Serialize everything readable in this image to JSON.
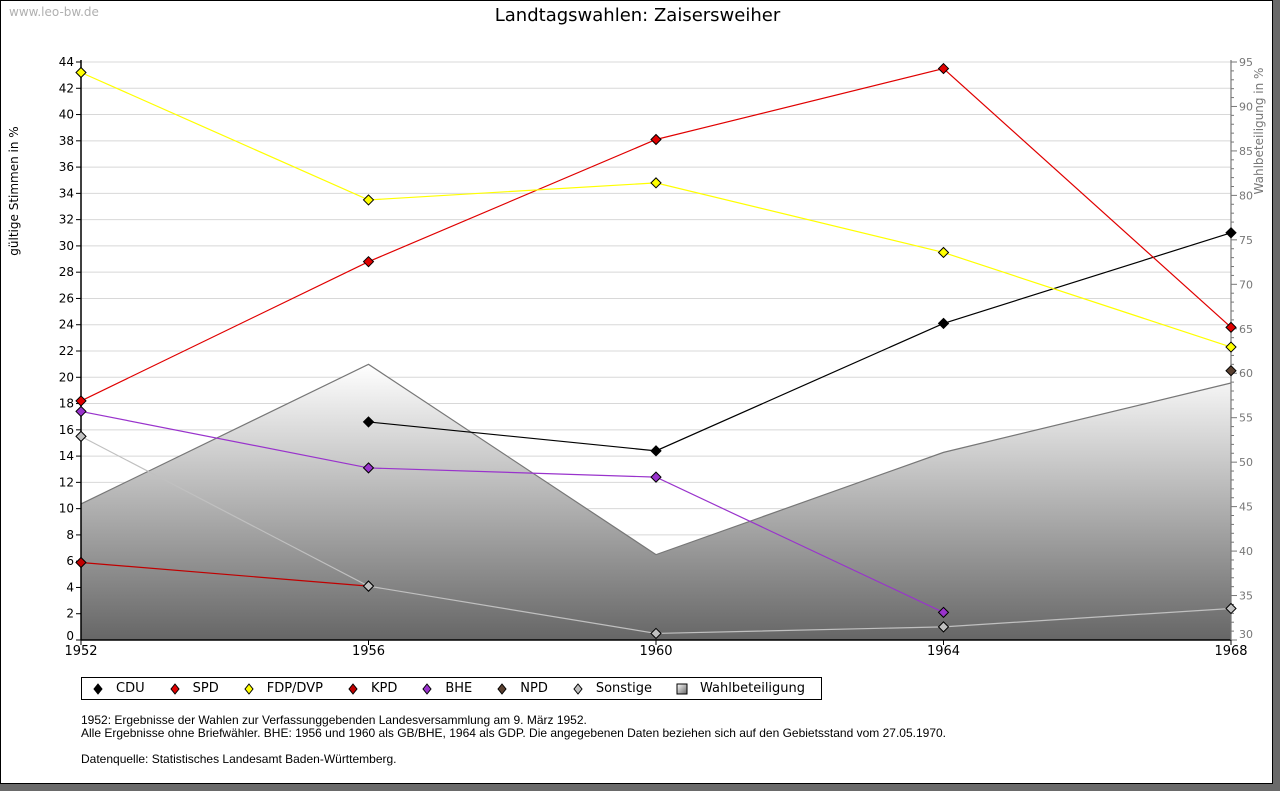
{
  "watermark": "www.leo-bw.de",
  "chart_data": {
    "type": "line",
    "title": "Landtagswahlen: Zaisersweiher",
    "ylabel": "gültige Stimmen in %",
    "y2label": "Wahlbeteiligung in %",
    "x": [
      1952,
      1956,
      1960,
      1964,
      1968
    ],
    "xticks": [
      "1952",
      "1956",
      "1960",
      "1964",
      "1968"
    ],
    "ylim": [
      0,
      44
    ],
    "yticks": [
      "0",
      "2",
      "4",
      "6",
      "8",
      "10",
      "12",
      "14",
      "16",
      "18",
      "20",
      "22",
      "24",
      "26",
      "28",
      "30",
      "32",
      "34",
      "36",
      "38",
      "40",
      "42",
      "44"
    ],
    "y2lim": [
      30,
      95
    ],
    "y2ticks": [
      "30",
      "35",
      "40",
      "45",
      "50",
      "55",
      "60",
      "65",
      "70",
      "75",
      "80",
      "85",
      "90",
      "95"
    ],
    "grid": true,
    "legend_position": "bottom",
    "series": [
      {
        "name": "CDU",
        "color": "#000000",
        "values": [
          null,
          16.6,
          14.4,
          24.1,
          31.0
        ]
      },
      {
        "name": "SPD",
        "color": "#e00000",
        "values": [
          18.2,
          28.8,
          38.1,
          43.5,
          23.8
        ]
      },
      {
        "name": "FDP/DVP",
        "color": "#ffff00",
        "values": [
          43.2,
          33.5,
          34.8,
          29.5,
          22.3
        ]
      },
      {
        "name": "KPD",
        "color": "#c00000",
        "values": [
          5.9,
          4.1,
          null,
          null,
          null
        ]
      },
      {
        "name": "BHE",
        "color": "#9933cc",
        "values": [
          17.4,
          13.1,
          12.4,
          2.1,
          null
        ]
      },
      {
        "name": "NPD",
        "color": "#5a4030",
        "values": [
          null,
          null,
          null,
          null,
          20.5
        ]
      },
      {
        "name": "Sonstige",
        "color": "#c0c0c0",
        "values": [
          15.5,
          4.1,
          0.5,
          1.0,
          2.4
        ]
      }
    ],
    "area_series": {
      "name": "Wahlbeteiligung",
      "axis": "right",
      "values": [
        45.3,
        61.0,
        39.6,
        51.1,
        58.9
      ]
    }
  },
  "notes": {
    "line1": "1952: Ergebnisse der Wahlen zur Verfassunggebenden Landesversammlung am 9. März 1952.",
    "line2": "Alle Ergebnisse ohne Briefwähler. BHE: 1956 und 1960 als GB/BHE, 1964 als GDP. Die angegebenen Daten beziehen sich auf den Gebietsstand vom 27.05.1970.",
    "source": "Datenquelle: Statistisches Landesamt Baden-Württemberg."
  }
}
